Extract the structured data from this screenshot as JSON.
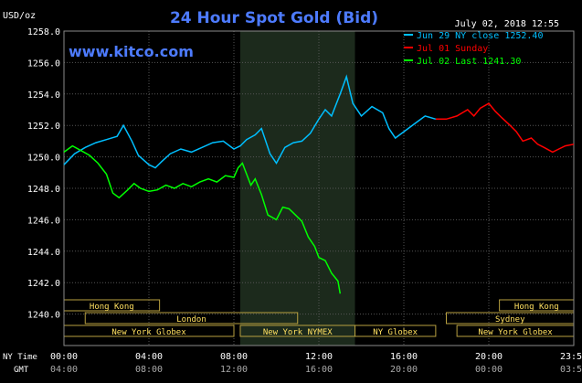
{
  "chart_data": {
    "type": "line",
    "title": "24 Hour Spot Gold (Bid)",
    "ylabel": "USD/oz",
    "watermark": "www.kitco.com",
    "timestamp": "July 02, 2018 12:55",
    "ylim": [
      1238,
      1258
    ],
    "xlim": [
      0,
      24
    ],
    "yticks": [
      1240,
      1242,
      1244,
      1246,
      1248,
      1250,
      1252,
      1254,
      1256,
      1258
    ],
    "yticklabels": [
      "1240.0",
      "1242.0",
      "1244.0",
      "1246.0",
      "1248.0",
      "1250.0",
      "1252.0",
      "1254.0",
      "1256.0",
      "1258.0"
    ],
    "xticks": [
      0,
      4,
      8,
      12,
      16,
      20,
      24
    ],
    "xticklabels_ny": [
      "00:00",
      "04:00",
      "08:00",
      "12:00",
      "16:00",
      "20:00",
      "23:59"
    ],
    "xticklabels_gmt": [
      "04:00",
      "08:00",
      "12:00",
      "16:00",
      "20:00",
      "00:00",
      "03:59"
    ],
    "xaxis_row_labels": [
      "NY Time",
      "GMT"
    ],
    "grid": true,
    "legend_position": "top-right",
    "highlight_range": [
      8.3,
      13.7
    ],
    "series": [
      {
        "name": "Jun 29 NY close 1252.40",
        "color": "#00bfff",
        "x": [
          0,
          0.5,
          1,
          1.5,
          2,
          2.5,
          2.8,
          3.2,
          3.5,
          4,
          4.3,
          4.6,
          5,
          5.5,
          6,
          6.5,
          7,
          7.5,
          8,
          8.3,
          8.6,
          9,
          9.3,
          9.7,
          10,
          10.4,
          10.8,
          11.2,
          11.6,
          12,
          12.3,
          12.6,
          13,
          13.3,
          13.6,
          14,
          14.5,
          15,
          15.3,
          15.6,
          16,
          16.5,
          17,
          17.5
        ],
        "values": [
          1249.5,
          1250.2,
          1250.6,
          1250.9,
          1251.1,
          1251.3,
          1252.0,
          1251.0,
          1250.1,
          1249.5,
          1249.3,
          1249.7,
          1250.2,
          1250.5,
          1250.3,
          1250.6,
          1250.9,
          1251.0,
          1250.5,
          1250.7,
          1251.1,
          1251.4,
          1251.8,
          1250.2,
          1249.6,
          1250.6,
          1250.9,
          1251.0,
          1251.5,
          1252.4,
          1253.0,
          1252.6,
          1254.0,
          1255.1,
          1253.4,
          1252.6,
          1253.2,
          1252.8,
          1251.8,
          1251.2,
          1251.6,
          1252.1,
          1252.6,
          1252.4
        ]
      },
      {
        "name": "Jul 01 Sunday",
        "color": "#ff0000",
        "x": [
          17.5,
          18,
          18.5,
          19,
          19.3,
          19.6,
          20,
          20.3,
          20.6,
          21,
          21.3,
          21.6,
          22,
          22.3,
          22.6,
          23,
          23.3,
          23.6,
          24
        ],
        "values": [
          1252.4,
          1252.4,
          1252.6,
          1253.0,
          1252.6,
          1253.1,
          1253.4,
          1252.9,
          1252.5,
          1252.0,
          1251.6,
          1251.0,
          1251.2,
          1250.8,
          1250.6,
          1250.3,
          1250.5,
          1250.7,
          1250.8
        ]
      },
      {
        "name": "Jul 02 Last 1241.30",
        "color": "#00ff00",
        "x": [
          0,
          0.4,
          0.8,
          1.2,
          1.6,
          2,
          2.3,
          2.6,
          3,
          3.3,
          3.6,
          4,
          4.4,
          4.8,
          5.2,
          5.6,
          6,
          6.4,
          6.8,
          7.2,
          7.6,
          8,
          8.2,
          8.4,
          8.6,
          8.8,
          9,
          9.3,
          9.6,
          10,
          10.3,
          10.6,
          10.9,
          11.2,
          11.5,
          11.8,
          12,
          12.3,
          12.6,
          12.9,
          13
        ],
        "values": [
          1250.3,
          1250.7,
          1250.4,
          1250.1,
          1249.6,
          1248.9,
          1247.7,
          1247.4,
          1247.9,
          1248.3,
          1248.0,
          1247.8,
          1247.9,
          1248.2,
          1248.0,
          1248.3,
          1248.1,
          1248.4,
          1248.6,
          1248.4,
          1248.8,
          1248.7,
          1249.3,
          1249.6,
          1248.9,
          1248.2,
          1248.6,
          1247.6,
          1246.3,
          1246.0,
          1246.8,
          1246.7,
          1246.3,
          1245.9,
          1244.9,
          1244.3,
          1243.6,
          1243.4,
          1242.6,
          1242.1,
          1241.3
        ]
      }
    ],
    "session_bars": [
      {
        "label": "Hong Kong",
        "row": 0,
        "start": 0,
        "end": 4.5
      },
      {
        "label": "Hong Kong",
        "row": 0,
        "start": 20.5,
        "end": 24
      },
      {
        "label": "London",
        "row": 1,
        "start": 1.0,
        "end": 11.0
      },
      {
        "label": "Sydney",
        "row": 1,
        "start": 18.0,
        "end": 24
      },
      {
        "label": "New York Globex",
        "row": 2,
        "start": 0,
        "end": 8.0
      },
      {
        "label": "New York NYMEX",
        "row": 2,
        "start": 8.3,
        "end": 13.7
      },
      {
        "label": "NY Globex",
        "row": 2,
        "start": 13.7,
        "end": 17.5
      },
      {
        "label": "New York Globex",
        "row": 2,
        "start": 18.5,
        "end": 24
      }
    ]
  }
}
